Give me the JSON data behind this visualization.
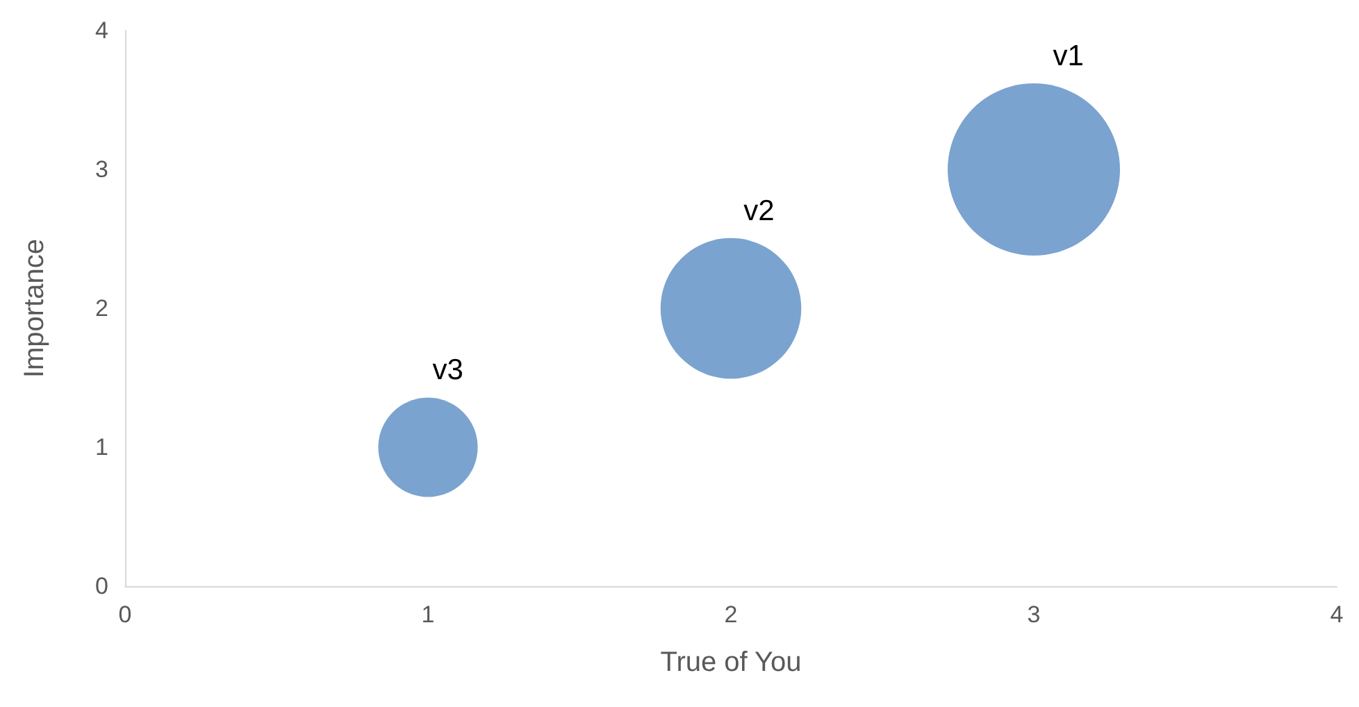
{
  "chart_data": {
    "type": "bubble",
    "xlabel": "True of You",
    "ylabel": "Importance",
    "x": [
      1,
      2,
      3
    ],
    "values": [
      1,
      2,
      3
    ],
    "sizes": [
      0.333,
      0.667,
      1
    ],
    "value_labels": [
      "v3",
      "v2",
      "v1"
    ],
    "color": "#7ba3cf",
    "xlim": [
      0,
      4
    ],
    "xticks": [
      0,
      1,
      2,
      3,
      4
    ],
    "ylim": [
      0,
      4
    ],
    "yticks": [
      0,
      1,
      2,
      3,
      4
    ],
    "grid": false
  }
}
